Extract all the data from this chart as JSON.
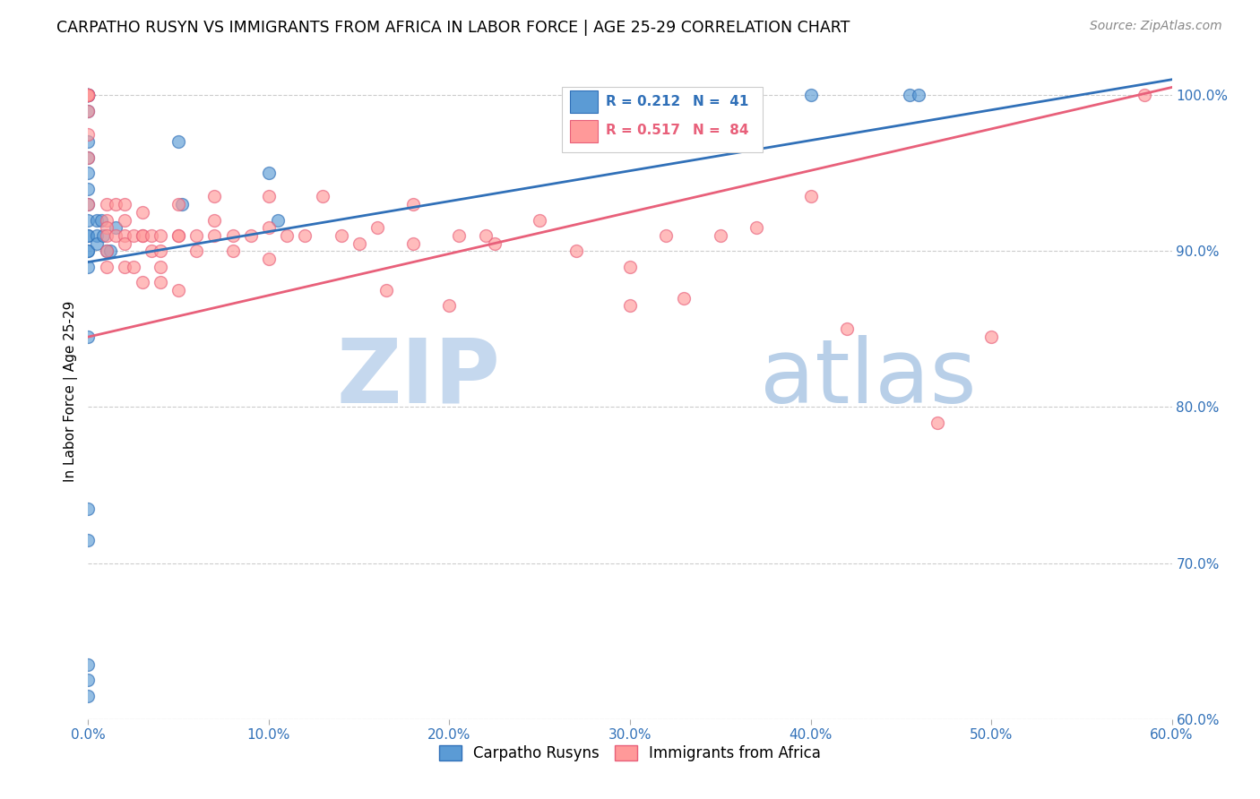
{
  "title": "CARPATHO RUSYN VS IMMIGRANTS FROM AFRICA IN LABOR FORCE | AGE 25-29 CORRELATION CHART",
  "source": "Source: ZipAtlas.com",
  "ylabel": "In Labor Force | Age 25-29",
  "xlim": [
    0.0,
    0.6
  ],
  "ylim": [
    0.6,
    1.02
  ],
  "x_ticks": [
    0.0,
    0.1,
    0.2,
    0.3,
    0.4,
    0.5,
    0.6
  ],
  "x_tick_labels": [
    "0.0%",
    "10.0%",
    "20.0%",
    "30.0%",
    "40.0%",
    "50.0%",
    "60.0%"
  ],
  "y_ticks_right": [
    0.6,
    0.7,
    0.8,
    0.9,
    1.0
  ],
  "y_tick_labels_right": [
    "60.0%",
    "70.0%",
    "80.0%",
    "90.0%",
    "100.0%"
  ],
  "blue_R": 0.212,
  "blue_N": 41,
  "pink_R": 0.517,
  "pink_N": 84,
  "blue_color": "#5B9BD5",
  "pink_color": "#FF9999",
  "blue_line_color": "#3070B8",
  "pink_line_color": "#E8607A",
  "watermark_zip": "ZIP",
  "watermark_atlas": "atlas",
  "watermark_color_zip": "#C5D8EE",
  "watermark_color_atlas": "#B8CFE8",
  "legend_blue_label": "Carpatho Rusyns",
  "legend_pink_label": "Immigrants from Africa",
  "blue_line_x0": 0.0,
  "blue_line_y0": 0.893,
  "blue_line_x1": 0.6,
  "blue_line_y1": 1.01,
  "pink_line_x0": 0.0,
  "pink_line_y0": 0.845,
  "pink_line_x1": 0.6,
  "pink_line_y1": 1.005,
  "blue_scatter_x": [
    0.0,
    0.0,
    0.0,
    0.0,
    0.0,
    0.0,
    0.0,
    0.0,
    0.0,
    0.0,
    0.0,
    0.0,
    0.0,
    0.0,
    0.0,
    0.0,
    0.0,
    0.0,
    0.0,
    0.0,
    0.005,
    0.005,
    0.005,
    0.007,
    0.008,
    0.01,
    0.012,
    0.015,
    0.05,
    0.052,
    0.1,
    0.105,
    0.4,
    0.455,
    0.46
  ],
  "blue_scatter_y": [
    1.0,
    1.0,
    1.0,
    1.0,
    1.0,
    1.0,
    1.0,
    1.0,
    0.99,
    0.97,
    0.96,
    0.95,
    0.94,
    0.93,
    0.92,
    0.91,
    0.91,
    0.9,
    0.9,
    0.89,
    0.92,
    0.91,
    0.905,
    0.92,
    0.91,
    0.9,
    0.9,
    0.915,
    0.97,
    0.93,
    0.95,
    0.92,
    1.0,
    1.0,
    1.0
  ],
  "blue_scatter_x2": [
    0.0,
    0.0,
    0.0,
    0.0,
    0.0,
    0.0
  ],
  "blue_scatter_y2": [
    0.735,
    0.715,
    0.845,
    0.635,
    0.625,
    0.615
  ],
  "pink_scatter_x": [
    0.0,
    0.0,
    0.0,
    0.0,
    0.0,
    0.0,
    0.0,
    0.0,
    0.0,
    0.01,
    0.01,
    0.01,
    0.01,
    0.01,
    0.01,
    0.015,
    0.015,
    0.02,
    0.02,
    0.02,
    0.02,
    0.02,
    0.025,
    0.025,
    0.03,
    0.03,
    0.03,
    0.03,
    0.035,
    0.035,
    0.04,
    0.04,
    0.04,
    0.04,
    0.05,
    0.05,
    0.05,
    0.05,
    0.06,
    0.06,
    0.07,
    0.07,
    0.07,
    0.08,
    0.08,
    0.09,
    0.1,
    0.1,
    0.1,
    0.11,
    0.12,
    0.13,
    0.14,
    0.15,
    0.16,
    0.165,
    0.18,
    0.18,
    0.2,
    0.205,
    0.22,
    0.225,
    0.25,
    0.27,
    0.3,
    0.3,
    0.32,
    0.33,
    0.35,
    0.37,
    0.4,
    0.42,
    0.47,
    0.5,
    0.585
  ],
  "pink_scatter_y": [
    1.0,
    1.0,
    1.0,
    1.0,
    1.0,
    0.99,
    0.975,
    0.96,
    0.93,
    0.93,
    0.92,
    0.915,
    0.91,
    0.9,
    0.89,
    0.93,
    0.91,
    0.93,
    0.92,
    0.91,
    0.905,
    0.89,
    0.91,
    0.89,
    0.925,
    0.91,
    0.91,
    0.88,
    0.91,
    0.9,
    0.91,
    0.9,
    0.89,
    0.88,
    0.93,
    0.91,
    0.91,
    0.875,
    0.91,
    0.9,
    0.935,
    0.92,
    0.91,
    0.91,
    0.9,
    0.91,
    0.935,
    0.915,
    0.895,
    0.91,
    0.91,
    0.935,
    0.91,
    0.905,
    0.915,
    0.875,
    0.93,
    0.905,
    0.865,
    0.91,
    0.91,
    0.905,
    0.92,
    0.9,
    0.89,
    0.865,
    0.91,
    0.87,
    0.91,
    0.915,
    0.935,
    0.85,
    0.79,
    0.845,
    1.0
  ]
}
